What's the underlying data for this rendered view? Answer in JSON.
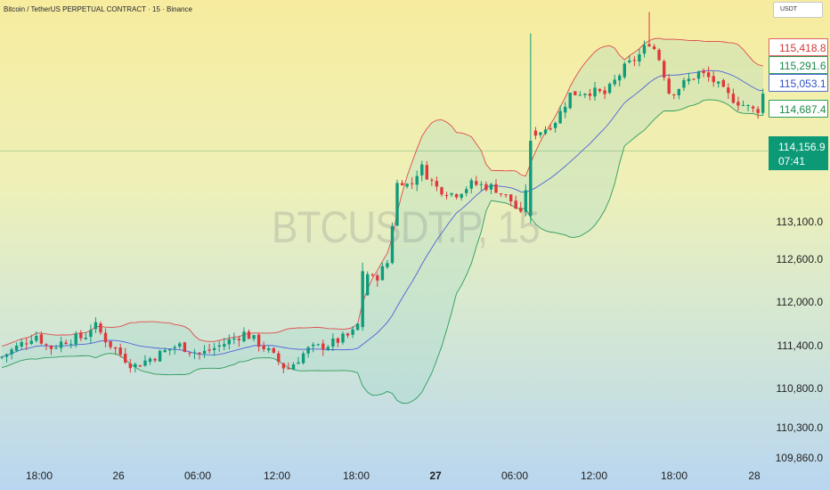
{
  "title": "Bitcoin / TetherUS PERPETUAL CONTRACT · 15 · Binance",
  "currency_badge": "USDT",
  "watermark": "BTCUSDT.P, 15",
  "colors": {
    "up": "#109b7a",
    "down": "#e0373d",
    "upper_band": "#e04a4a",
    "middle_band": "#4f63d8",
    "lower_band": "#2e9c5c",
    "band_fill": "#9fd6c8",
    "current_price_bg": "#0c9a76"
  },
  "price_labels": {
    "upper": "115,418.8",
    "open": "115,291.6",
    "middle": "115,053.1",
    "lower": "114,687.4"
  },
  "current_price": {
    "price": "114,156.9",
    "countdown": "07:41"
  },
  "chart_data": {
    "type": "candlestick",
    "title": "Bitcoin / TetherUS PERPETUAL CONTRACT · 15 · Binance",
    "y_axis_ticks": [
      "113,100.0",
      "112,600.0",
      "112,000.0",
      "111,400.0",
      "110,800.0",
      "110,300.0",
      "109,860.0"
    ],
    "x_axis_ticks": [
      {
        "label": "18:00",
        "bold": false
      },
      {
        "label": "26",
        "bold": false
      },
      {
        "label": "06:00",
        "bold": false
      },
      {
        "label": "12:00",
        "bold": false
      },
      {
        "label": "18:00",
        "bold": false
      },
      {
        "label": "27",
        "bold": true
      },
      {
        "label": "06:00",
        "bold": false
      },
      {
        "label": "12:00",
        "bold": false
      },
      {
        "label": "18:00",
        "bold": false
      },
      {
        "label": "28",
        "bold": false
      }
    ],
    "indicator": {
      "name": "Bollinger Bands",
      "upper_last": 115418.8,
      "middle_last": 115053.1,
      "lower_last": 114687.4
    },
    "last_price": 114156.9,
    "candle_interval": "15m",
    "close_path": [
      {
        "x": 0,
        "y": 111270
      },
      {
        "x": 20,
        "y": 111430
      },
      {
        "x": 40,
        "y": 111600
      },
      {
        "x": 55,
        "y": 111400
      },
      {
        "x": 75,
        "y": 111520
      },
      {
        "x": 95,
        "y": 111560
      },
      {
        "x": 105,
        "y": 111750
      },
      {
        "x": 120,
        "y": 111500
      },
      {
        "x": 150,
        "y": 111150
      },
      {
        "x": 175,
        "y": 111300
      },
      {
        "x": 200,
        "y": 111450
      },
      {
        "x": 225,
        "y": 111320
      },
      {
        "x": 250,
        "y": 111460
      },
      {
        "x": 275,
        "y": 111620
      },
      {
        "x": 300,
        "y": 111380
      },
      {
        "x": 322,
        "y": 111100
      },
      {
        "x": 345,
        "y": 111380
      },
      {
        "x": 370,
        "y": 111460
      },
      {
        "x": 395,
        "y": 111600
      },
      {
        "x": 404,
        "y": 111780
      },
      {
        "x": 410,
        "y": 112480
      },
      {
        "x": 420,
        "y": 112350
      },
      {
        "x": 435,
        "y": 112600
      },
      {
        "x": 447,
        "y": 113800
      },
      {
        "x": 460,
        "y": 113650
      },
      {
        "x": 472,
        "y": 113950
      },
      {
        "x": 490,
        "y": 113650
      },
      {
        "x": 510,
        "y": 113550
      },
      {
        "x": 530,
        "y": 113700
      },
      {
        "x": 555,
        "y": 113650
      },
      {
        "x": 575,
        "y": 113450
      },
      {
        "x": 587,
        "y": 113200
      },
      {
        "x": 596,
        "y": 114400
      },
      {
        "x": 610,
        "y": 114450
      },
      {
        "x": 625,
        "y": 114600
      },
      {
        "x": 640,
        "y": 114950
      },
      {
        "x": 660,
        "y": 115000
      },
      {
        "x": 680,
        "y": 114950
      },
      {
        "x": 700,
        "y": 115300
      },
      {
        "x": 718,
        "y": 115500
      },
      {
        "x": 730,
        "y": 115700
      },
      {
        "x": 742,
        "y": 115400
      },
      {
        "x": 752,
        "y": 114950
      },
      {
        "x": 768,
        "y": 115100
      },
      {
        "x": 785,
        "y": 115250
      },
      {
        "x": 800,
        "y": 115150
      },
      {
        "x": 815,
        "y": 114950
      },
      {
        "x": 835,
        "y": 114800
      },
      {
        "x": 850,
        "y": 114700
      },
      {
        "x": 862,
        "y": 115150
      }
    ]
  }
}
